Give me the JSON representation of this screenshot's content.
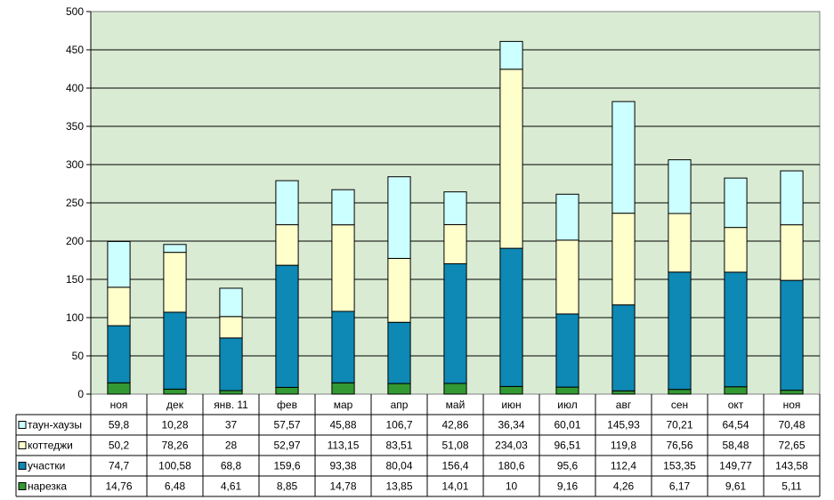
{
  "chart_data": {
    "type": "bar",
    "stacked": true,
    "title": "",
    "xlabel": "",
    "ylabel": "",
    "ylim": [
      0,
      500
    ],
    "yticks": [
      0,
      50,
      100,
      150,
      200,
      250,
      300,
      350,
      400,
      450,
      500
    ],
    "grid": true,
    "legend": "data-table-left",
    "categories": [
      "ноя",
      "дек",
      "янв. 11",
      "фев",
      "мар",
      "апр",
      "май",
      "июн",
      "июл",
      "авг",
      "сен",
      "окт",
      "ноя"
    ],
    "series": [
      {
        "name": "нарезка",
        "color": "#339933",
        "values": [
          14.76,
          6.48,
          4.61,
          8.85,
          14.78,
          13.85,
          14.01,
          10,
          9.16,
          4.26,
          6.17,
          9.61,
          5.11
        ],
        "labels": [
          "14,76",
          "6,48",
          "4,61",
          "8,85",
          "14,78",
          "13,85",
          "14,01",
          "10",
          "9,16",
          "4,26",
          "6,17",
          "9,61",
          "5,11"
        ]
      },
      {
        "name": "участки",
        "color": "#0e88b4",
        "values": [
          74.7,
          100.58,
          68.8,
          159.6,
          93.38,
          80.04,
          156.4,
          180.6,
          95.6,
          112.4,
          153.35,
          149.77,
          143.58
        ],
        "labels": [
          "74,7",
          "100,58",
          "68,8",
          "159,6",
          "93,38",
          "80,04",
          "156,4",
          "180,6",
          "95,6",
          "112,4",
          "153,35",
          "149,77",
          "143,58"
        ]
      },
      {
        "name": "коттеджи",
        "color": "#ffffcc",
        "values": [
          50.2,
          78.26,
          28,
          52.97,
          113.15,
          83.51,
          51.08,
          234.03,
          96.51,
          119.8,
          76.56,
          58.48,
          72.65
        ],
        "labels": [
          "50,2",
          "78,26",
          "28",
          "52,97",
          "113,15",
          "83,51",
          "51,08",
          "234,03",
          "96,51",
          "119,8",
          "76,56",
          "58,48",
          "72,65"
        ]
      },
      {
        "name": "таун-хаузы",
        "color": "#ccffff",
        "values": [
          59.8,
          10.28,
          37,
          57.57,
          45.88,
          106.7,
          42.86,
          36.34,
          60.01,
          145.93,
          70.21,
          64.54,
          70.48
        ],
        "labels": [
          "59,8",
          "10,28",
          "37",
          "57,57",
          "45,88",
          "106,7",
          "42,86",
          "36,34",
          "60,01",
          "145,93",
          "70,21",
          "64,54",
          "70,48"
        ]
      }
    ],
    "table_row_order": [
      "таун-хаузы",
      "коттеджи",
      "участки",
      "нарезка"
    ],
    "plot_background": "#d9ebd3"
  }
}
